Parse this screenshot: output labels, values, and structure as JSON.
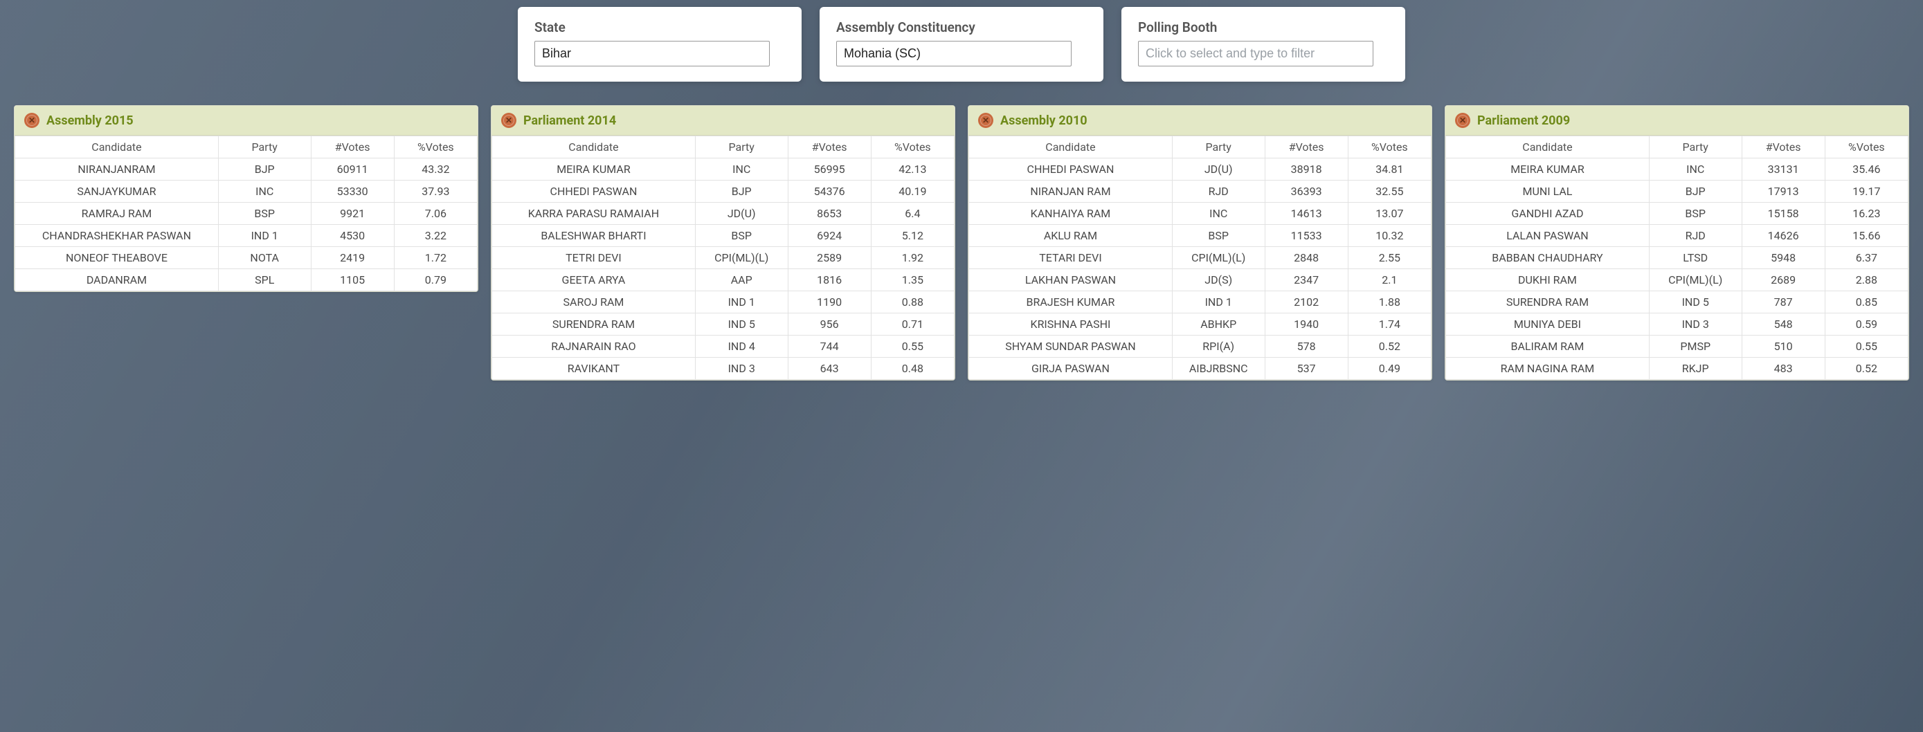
{
  "filters": {
    "state": {
      "label": "State",
      "value": "Bihar"
    },
    "ac": {
      "label": "Assembly Constituency",
      "value": "Mohania (SC)"
    },
    "booth": {
      "label": "Polling Booth",
      "value": "",
      "placeholder": "Click to select and type to filter"
    }
  },
  "columns": {
    "candidate": "Candidate",
    "party": "Party",
    "votes": "#Votes",
    "pct": "%Votes"
  },
  "panels": [
    {
      "title": "Assembly 2015",
      "rows": [
        {
          "candidate": "NIRANJANRAM",
          "party": "BJP",
          "votes": "60911",
          "pct": "43.32"
        },
        {
          "candidate": "SANJAYKUMAR",
          "party": "INC",
          "votes": "53330",
          "pct": "37.93"
        },
        {
          "candidate": "RAMRAJ RAM",
          "party": "BSP",
          "votes": "9921",
          "pct": "7.06"
        },
        {
          "candidate": "CHANDRASHEKHAR PASWAN",
          "party": "IND 1",
          "votes": "4530",
          "pct": "3.22"
        },
        {
          "candidate": "NONEOF THEABOVE",
          "party": "NOTA",
          "votes": "2419",
          "pct": "1.72"
        },
        {
          "candidate": "DADANRAM",
          "party": "SPL",
          "votes": "1105",
          "pct": "0.79"
        }
      ]
    },
    {
      "title": "Parliament 2014",
      "rows": [
        {
          "candidate": "MEIRA KUMAR",
          "party": "INC",
          "votes": "56995",
          "pct": "42.13"
        },
        {
          "candidate": "CHHEDI PASWAN",
          "party": "BJP",
          "votes": "54376",
          "pct": "40.19"
        },
        {
          "candidate": "KARRA PARASU RAMAIAH",
          "party": "JD(U)",
          "votes": "8653",
          "pct": "6.4"
        },
        {
          "candidate": "BALESHWAR BHARTI",
          "party": "BSP",
          "votes": "6924",
          "pct": "5.12"
        },
        {
          "candidate": "TETRI DEVI",
          "party": "CPI(ML)(L)",
          "votes": "2589",
          "pct": "1.92"
        },
        {
          "candidate": "GEETA ARYA",
          "party": "AAP",
          "votes": "1816",
          "pct": "1.35"
        },
        {
          "candidate": "SAROJ RAM",
          "party": "IND 1",
          "votes": "1190",
          "pct": "0.88"
        },
        {
          "candidate": "SURENDRA RAM",
          "party": "IND 5",
          "votes": "956",
          "pct": "0.71"
        },
        {
          "candidate": "RAJNARAIN RAO",
          "party": "IND 4",
          "votes": "744",
          "pct": "0.55"
        },
        {
          "candidate": "RAVIKANT",
          "party": "IND 3",
          "votes": "643",
          "pct": "0.48"
        }
      ]
    },
    {
      "title": "Assembly 2010",
      "rows": [
        {
          "candidate": "CHHEDI PASWAN",
          "party": "JD(U)",
          "votes": "38918",
          "pct": "34.81"
        },
        {
          "candidate": "NIRANJAN RAM",
          "party": "RJD",
          "votes": "36393",
          "pct": "32.55"
        },
        {
          "candidate": "KANHAIYA RAM",
          "party": "INC",
          "votes": "14613",
          "pct": "13.07"
        },
        {
          "candidate": "AKLU RAM",
          "party": "BSP",
          "votes": "11533",
          "pct": "10.32"
        },
        {
          "candidate": "TETARI DEVI",
          "party": "CPI(ML)(L)",
          "votes": "2848",
          "pct": "2.55"
        },
        {
          "candidate": "LAKHAN PASWAN",
          "party": "JD(S)",
          "votes": "2347",
          "pct": "2.1"
        },
        {
          "candidate": "BRAJESH KUMAR",
          "party": "IND 1",
          "votes": "2102",
          "pct": "1.88"
        },
        {
          "candidate": "KRISHNA PASHI",
          "party": "ABHKP",
          "votes": "1940",
          "pct": "1.74"
        },
        {
          "candidate": "SHYAM SUNDAR PASWAN",
          "party": "RPI(A)",
          "votes": "578",
          "pct": "0.52"
        },
        {
          "candidate": "GIRJA PASWAN",
          "party": "AIBJRBSNC",
          "votes": "537",
          "pct": "0.49"
        }
      ]
    },
    {
      "title": "Parliament 2009",
      "rows": [
        {
          "candidate": "MEIRA KUMAR",
          "party": "INC",
          "votes": "33131",
          "pct": "35.46"
        },
        {
          "candidate": "MUNI LAL",
          "party": "BJP",
          "votes": "17913",
          "pct": "19.17"
        },
        {
          "candidate": "GANDHI AZAD",
          "party": "BSP",
          "votes": "15158",
          "pct": "16.23"
        },
        {
          "candidate": "LALAN PASWAN",
          "party": "RJD",
          "votes": "14626",
          "pct": "15.66"
        },
        {
          "candidate": "BABBAN CHAUDHARY",
          "party": "LTSD",
          "votes": "5948",
          "pct": "6.37"
        },
        {
          "candidate": "DUKHI RAM",
          "party": "CPI(ML)(L)",
          "votes": "2689",
          "pct": "2.88"
        },
        {
          "candidate": "SURENDRA RAM",
          "party": "IND 5",
          "votes": "787",
          "pct": "0.85"
        },
        {
          "candidate": "MUNIYA DEBI",
          "party": "IND 3",
          "votes": "548",
          "pct": "0.59"
        },
        {
          "candidate": "BALIRAM RAM",
          "party": "PMSP",
          "votes": "510",
          "pct": "0.55"
        },
        {
          "candidate": "RAM NAGINA RAM",
          "party": "RKJP",
          "votes": "483",
          "pct": "0.52"
        }
      ]
    }
  ],
  "styling": {
    "panel_header_bg": "#e3e8c6",
    "panel_title_color": "#6f8a1a",
    "icon_bg": "#c96a3f",
    "border_color": "#e2e2e2",
    "body_overlay": "rgba(60,75,95,0.55)"
  }
}
